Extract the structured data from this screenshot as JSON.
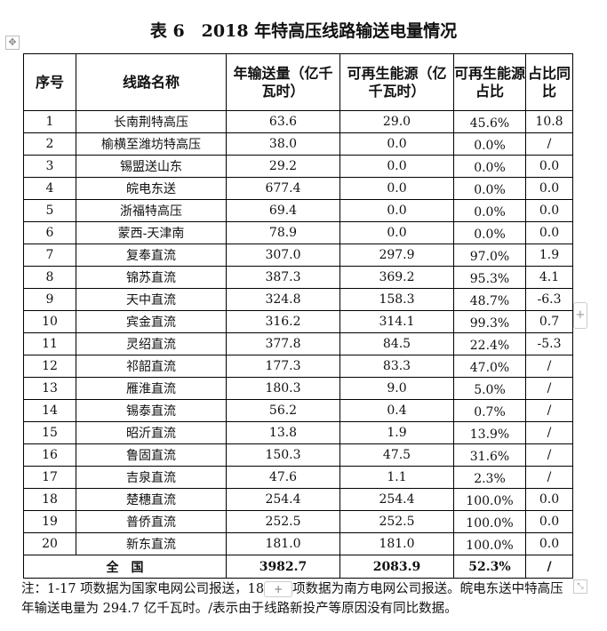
{
  "title": "表 6　2018 年特高压线路输送电量情况",
  "headers": [
    "序号",
    "线路名称",
    "年输送量（亿千瓦时）",
    "可再生能源（亿千瓦时）",
    "可再生能源占比",
    "占比同比"
  ],
  "rows": [
    [
      "1",
      "长南荆特高压",
      "63.6",
      "29.0",
      "45.6%",
      "10.8"
    ],
    [
      "2",
      "榆横至潍坊特高压",
      "38.0",
      "0.0",
      "0.0%",
      "/"
    ],
    [
      "3",
      "锡盟送山东",
      "29.2",
      "0.0",
      "0.0%",
      "0.0"
    ],
    [
      "4",
      "皖电东送",
      "677.4",
      "0.0",
      "0.0%",
      "0.0"
    ],
    [
      "5",
      "浙福特高压",
      "69.4",
      "0.0",
      "0.0%",
      "0.0"
    ],
    [
      "6",
      "蒙西-天津南",
      "78.9",
      "0.0",
      "0.0%",
      "0.0"
    ],
    [
      "7",
      "复奉直流",
      "307.0",
      "297.9",
      "97.0%",
      "1.9"
    ],
    [
      "8",
      "锦苏直流",
      "387.3",
      "369.2",
      "95.3%",
      "4.1"
    ],
    [
      "9",
      "天中直流",
      "324.8",
      "158.3",
      "48.7%",
      "-6.3"
    ],
    [
      "10",
      "宾金直流",
      "316.2",
      "314.1",
      "99.3%",
      "0.7"
    ],
    [
      "11",
      "灵绍直流",
      "377.8",
      "84.5",
      "22.4%",
      "-5.3"
    ],
    [
      "12",
      "祁韶直流",
      "177.3",
      "83.3",
      "47.0%",
      "/"
    ],
    [
      "13",
      "雁淮直流",
      "180.3",
      "9.0",
      "5.0%",
      "/"
    ],
    [
      "14",
      "锡泰直流",
      "56.2",
      "0.4",
      "0.7%",
      "/"
    ],
    [
      "15",
      "昭沂直流",
      "13.8",
      "1.9",
      "13.9%",
      "/"
    ],
    [
      "16",
      "鲁固直流",
      "150.3",
      "47.5",
      "31.6%",
      "/"
    ],
    [
      "17",
      "吉泉直流",
      "47.6",
      "1.1",
      "2.3%",
      "/"
    ],
    [
      "18",
      "楚穗直流",
      "254.4",
      "254.4",
      "100.0%",
      "0.0"
    ],
    [
      "19",
      "普侨直流",
      "252.5",
      "252.5",
      "100.0%",
      "0.0"
    ],
    [
      "20",
      "新东直流",
      "181.0",
      "181.0",
      "100.0%",
      "0.0"
    ]
  ],
  "total": {
    "label": "全　国",
    "annual": "3982.7",
    "renewable": "2083.9",
    "share": "52.3%",
    "yoy": "/"
  },
  "note": {
    "part1": "注：1-17 项数据为国家电网公司报送，18",
    "part2": "项数据为南方电网公司报送。皖电东送中特高压年输送电量为 294.7 亿千瓦时。/表示由于线路新投产等原因没有同比数据。"
  },
  "icons": {
    "move": "move-handle-icon",
    "add": "plus-icon",
    "resize": "resize-icon"
  }
}
